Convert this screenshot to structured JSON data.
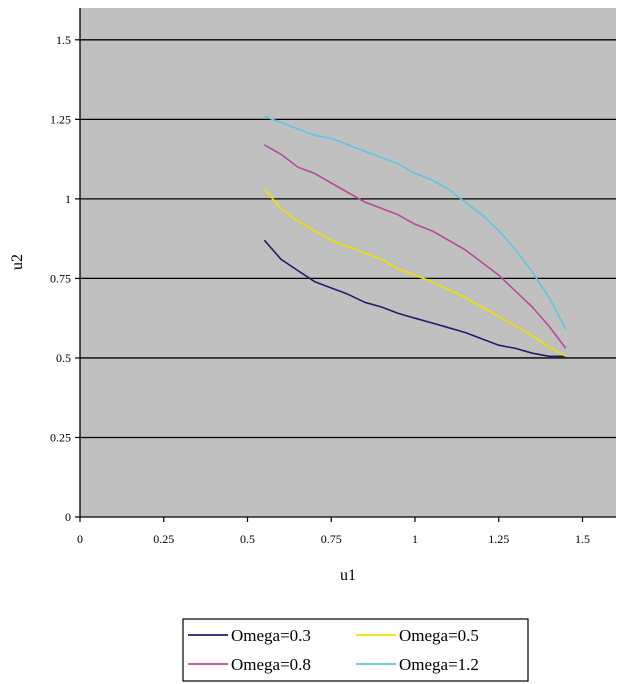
{
  "chart_data": {
    "type": "line",
    "title": "",
    "xlabel": "u1",
    "ylabel": "u2",
    "xlim": [
      0,
      1.6
    ],
    "ylim": [
      0,
      1.6
    ],
    "xticks": [
      0,
      0.25,
      0.5,
      0.75,
      1,
      1.25,
      1.5
    ],
    "xtick_labels": [
      "0",
      "0.25",
      "0.5",
      "0.75",
      "1",
      "1.25",
      "1.5"
    ],
    "yticks": [
      0,
      0.25,
      0.5,
      0.75,
      1,
      1.25,
      1.5
    ],
    "ytick_labels": [
      "0",
      "0.25",
      "0.5",
      "0.75",
      "1",
      "1.25",
      "1.5"
    ],
    "grid": "horizontal",
    "plot_background": "#c0c0c0",
    "legend_position": "bottom",
    "series": [
      {
        "name": "Omega=0.3",
        "color": "#1f1f6e",
        "x": [
          0.55,
          0.6,
          0.65,
          0.7,
          0.75,
          0.8,
          0.85,
          0.9,
          0.95,
          1.0,
          1.05,
          1.1,
          1.15,
          1.2,
          1.25,
          1.3,
          1.35,
          1.4,
          1.45
        ],
        "y": [
          0.87,
          0.81,
          0.775,
          0.74,
          0.72,
          0.7,
          0.675,
          0.66,
          0.64,
          0.625,
          0.61,
          0.595,
          0.58,
          0.56,
          0.54,
          0.53,
          0.515,
          0.505,
          0.505
        ]
      },
      {
        "name": "Omega=0.5",
        "color": "#f0e000",
        "x": [
          0.55,
          0.6,
          0.65,
          0.7,
          0.75,
          0.8,
          0.85,
          0.9,
          0.95,
          1.0,
          1.05,
          1.1,
          1.15,
          1.2,
          1.25,
          1.3,
          1.35,
          1.4,
          1.45
        ],
        "y": [
          1.03,
          0.97,
          0.93,
          0.9,
          0.87,
          0.85,
          0.83,
          0.81,
          0.78,
          0.76,
          0.74,
          0.715,
          0.69,
          0.66,
          0.63,
          0.6,
          0.57,
          0.535,
          0.505
        ]
      },
      {
        "name": "Omega=0.8",
        "color": "#b84a9a",
        "x": [
          0.55,
          0.6,
          0.65,
          0.7,
          0.75,
          0.8,
          0.85,
          0.9,
          0.95,
          1.0,
          1.05,
          1.1,
          1.15,
          1.2,
          1.25,
          1.3,
          1.35,
          1.4,
          1.45
        ],
        "y": [
          1.17,
          1.14,
          1.1,
          1.08,
          1.05,
          1.02,
          0.99,
          0.97,
          0.95,
          0.92,
          0.9,
          0.87,
          0.84,
          0.8,
          0.76,
          0.71,
          0.66,
          0.6,
          0.53
        ]
      },
      {
        "name": "Omega=1.2",
        "color": "#5bc8e0",
        "x": [
          0.55,
          0.6,
          0.65,
          0.7,
          0.75,
          0.8,
          0.85,
          0.9,
          0.95,
          1.0,
          1.05,
          1.1,
          1.15,
          1.2,
          1.25,
          1.3,
          1.35,
          1.4,
          1.45
        ],
        "y": [
          1.26,
          1.24,
          1.22,
          1.2,
          1.19,
          1.17,
          1.15,
          1.13,
          1.11,
          1.08,
          1.06,
          1.03,
          0.99,
          0.95,
          0.9,
          0.84,
          0.77,
          0.69,
          0.59
        ]
      }
    ]
  }
}
